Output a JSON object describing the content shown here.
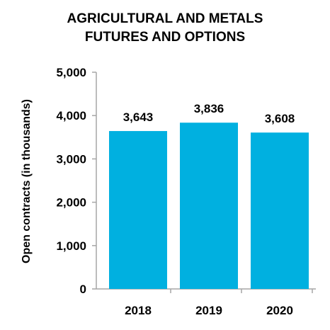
{
  "chart_data": {
    "type": "bar",
    "title_lines": [
      "AGRICULTURAL AND METALS",
      "FUTURES AND OPTIONS"
    ],
    "xlabel": "",
    "ylabel": "Open contracts (in thousands)",
    "categories": [
      "2018",
      "2019",
      "2020"
    ],
    "values": [
      3643,
      3836,
      3608
    ],
    "value_labels": [
      "3,643",
      "3,836",
      "3,608"
    ],
    "yticks": [
      0,
      1000,
      2000,
      3000,
      4000,
      5000
    ],
    "ytick_labels": [
      "0",
      "1,000",
      "2,000",
      "3,000",
      "4,000",
      "5,000"
    ],
    "ylim": [
      0,
      5000
    ],
    "grid": false,
    "legend": "none",
    "bar_color": "#00b0e0"
  }
}
